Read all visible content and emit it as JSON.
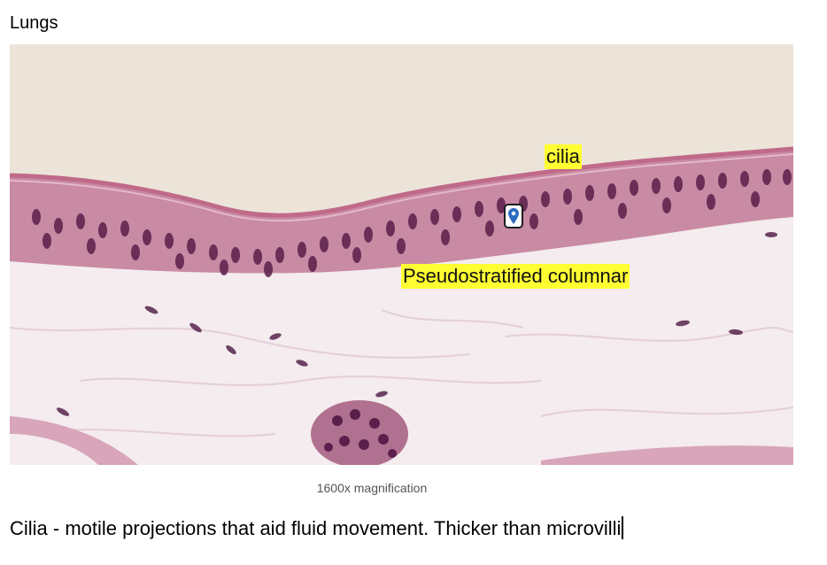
{
  "heading": "Lungs",
  "image": {
    "subject": "lung tissue micrograph",
    "labels": {
      "cilia": "cilia",
      "epithelium": "Pseudostratified columnar"
    },
    "copyright_symbol": "©"
  },
  "caption": "1600x magnification",
  "note": "Cilia - motile projections that aid fluid movement. Thicker than microvilli",
  "colors": {
    "background": "#ece4d9",
    "label_highlight": "#ffff33",
    "nuclei": "#5a1f4a",
    "cytoplasm": "#c9859f",
    "stroma": "#f1e8ea"
  }
}
